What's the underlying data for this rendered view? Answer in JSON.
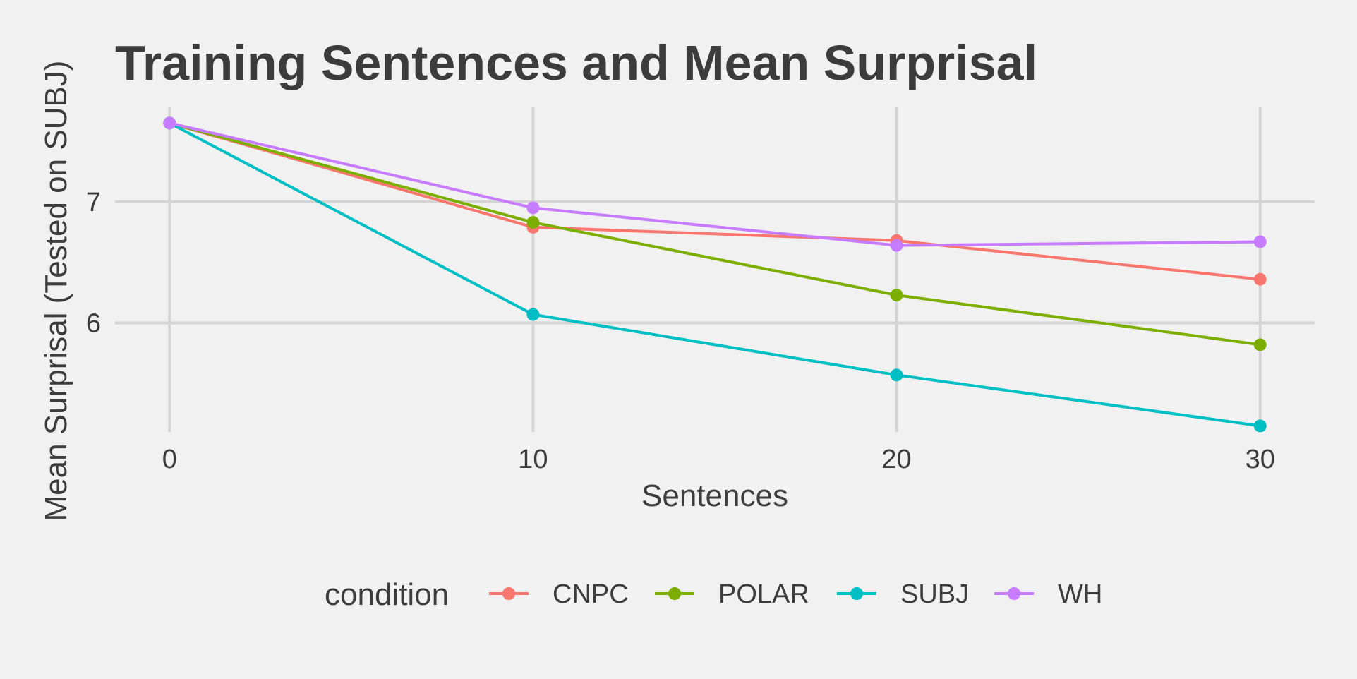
{
  "chart_data": {
    "type": "line",
    "title": "Training Sentences and Mean Surprisal",
    "xlabel": "Sentences",
    "ylabel": "Mean Surprisal (Tested on SUBJ)",
    "x": [
      0,
      10,
      20,
      30
    ],
    "xticks": [
      "0",
      "10",
      "20",
      "30"
    ],
    "yticks": [
      "6",
      "7"
    ],
    "xlim": [
      -1.5,
      31.5
    ],
    "ylim": [
      5.1,
      7.78
    ],
    "grid": true,
    "legend": {
      "title": "condition",
      "placement": "bottom",
      "entries": [
        "CNPC",
        "POLAR",
        "SUBJ",
        "WH"
      ]
    },
    "series": [
      {
        "name": "CNPC",
        "color": "#F8766D",
        "values": [
          7.65,
          6.79,
          6.68,
          6.36
        ]
      },
      {
        "name": "POLAR",
        "color": "#7CAE00",
        "values": [
          7.65,
          6.83,
          6.23,
          5.82
        ]
      },
      {
        "name": "SUBJ",
        "color": "#00BFC4",
        "values": [
          7.65,
          6.07,
          5.57,
          5.15
        ]
      },
      {
        "name": "WH",
        "color": "#C77CFF",
        "values": [
          7.65,
          6.95,
          6.64,
          6.67
        ]
      }
    ]
  }
}
